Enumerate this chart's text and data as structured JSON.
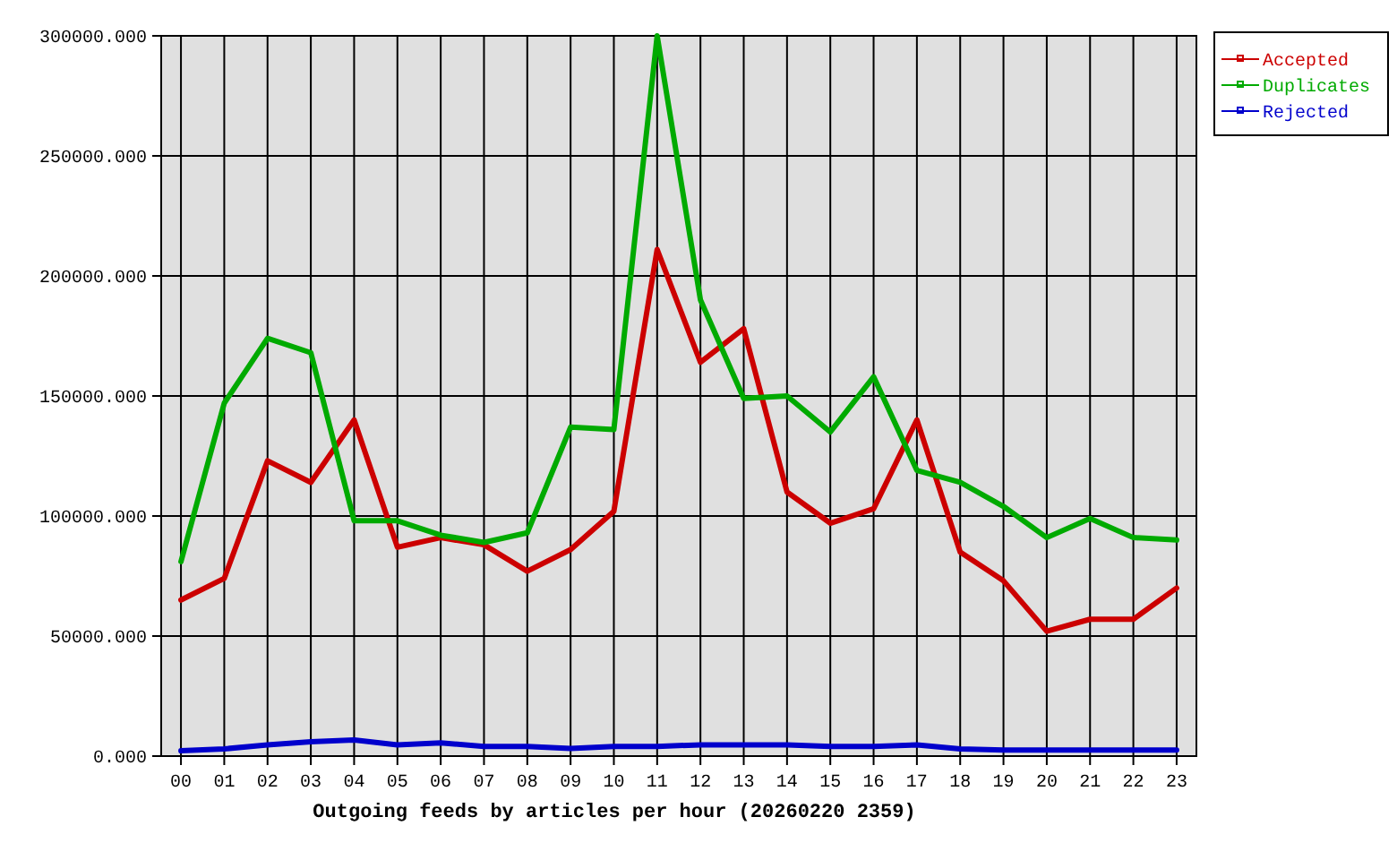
{
  "chart_data": {
    "type": "line",
    "xlabel": "Outgoing feeds by articles per hour (20260220 2359)",
    "categories": [
      "00",
      "01",
      "02",
      "03",
      "04",
      "05",
      "06",
      "07",
      "08",
      "09",
      "10",
      "11",
      "12",
      "13",
      "14",
      "15",
      "16",
      "17",
      "18",
      "19",
      "20",
      "21",
      "22",
      "23"
    ],
    "series": [
      {
        "name": "Accepted",
        "color": "#cc0000",
        "values": [
          65000,
          74000,
          123000,
          114000,
          140000,
          87000,
          91000,
          88000,
          77000,
          86000,
          102000,
          211000,
          164000,
          178000,
          110000,
          97000,
          103000,
          140000,
          85000,
          73000,
          52000,
          57000,
          57000,
          70000
        ]
      },
      {
        "name": "Duplicates",
        "color": "#00aa00",
        "values": [
          81000,
          147000,
          174000,
          168000,
          98000,
          98000,
          92000,
          89000,
          93000,
          137000,
          136000,
          300000,
          190000,
          149000,
          150000,
          135000,
          158000,
          119000,
          114000,
          104000,
          91000,
          99000,
          91000,
          90000
        ]
      },
      {
        "name": "Rejected",
        "color": "#0000cc",
        "values": [
          2200,
          3000,
          4700,
          6000,
          6700,
          4700,
          5500,
          4000,
          4000,
          3200,
          4000,
          4000,
          4700,
          4700,
          4700,
          4000,
          4000,
          4700,
          3000,
          2500,
          2500,
          2500,
          2500,
          2500
        ]
      }
    ],
    "ylim": [
      0,
      300000
    ],
    "yticks": [
      {
        "value": 0,
        "label": "0.000"
      },
      {
        "value": 50000,
        "label": "50000.000"
      },
      {
        "value": 100000,
        "label": "100000.000"
      },
      {
        "value": 150000,
        "label": "150000.000"
      },
      {
        "value": 200000,
        "label": "200000.000"
      },
      {
        "value": 250000,
        "label": "250000.000"
      },
      {
        "value": 300000,
        "label": "300000.000"
      }
    ],
    "grid": true,
    "legend": "top right",
    "line_style": "solid"
  }
}
